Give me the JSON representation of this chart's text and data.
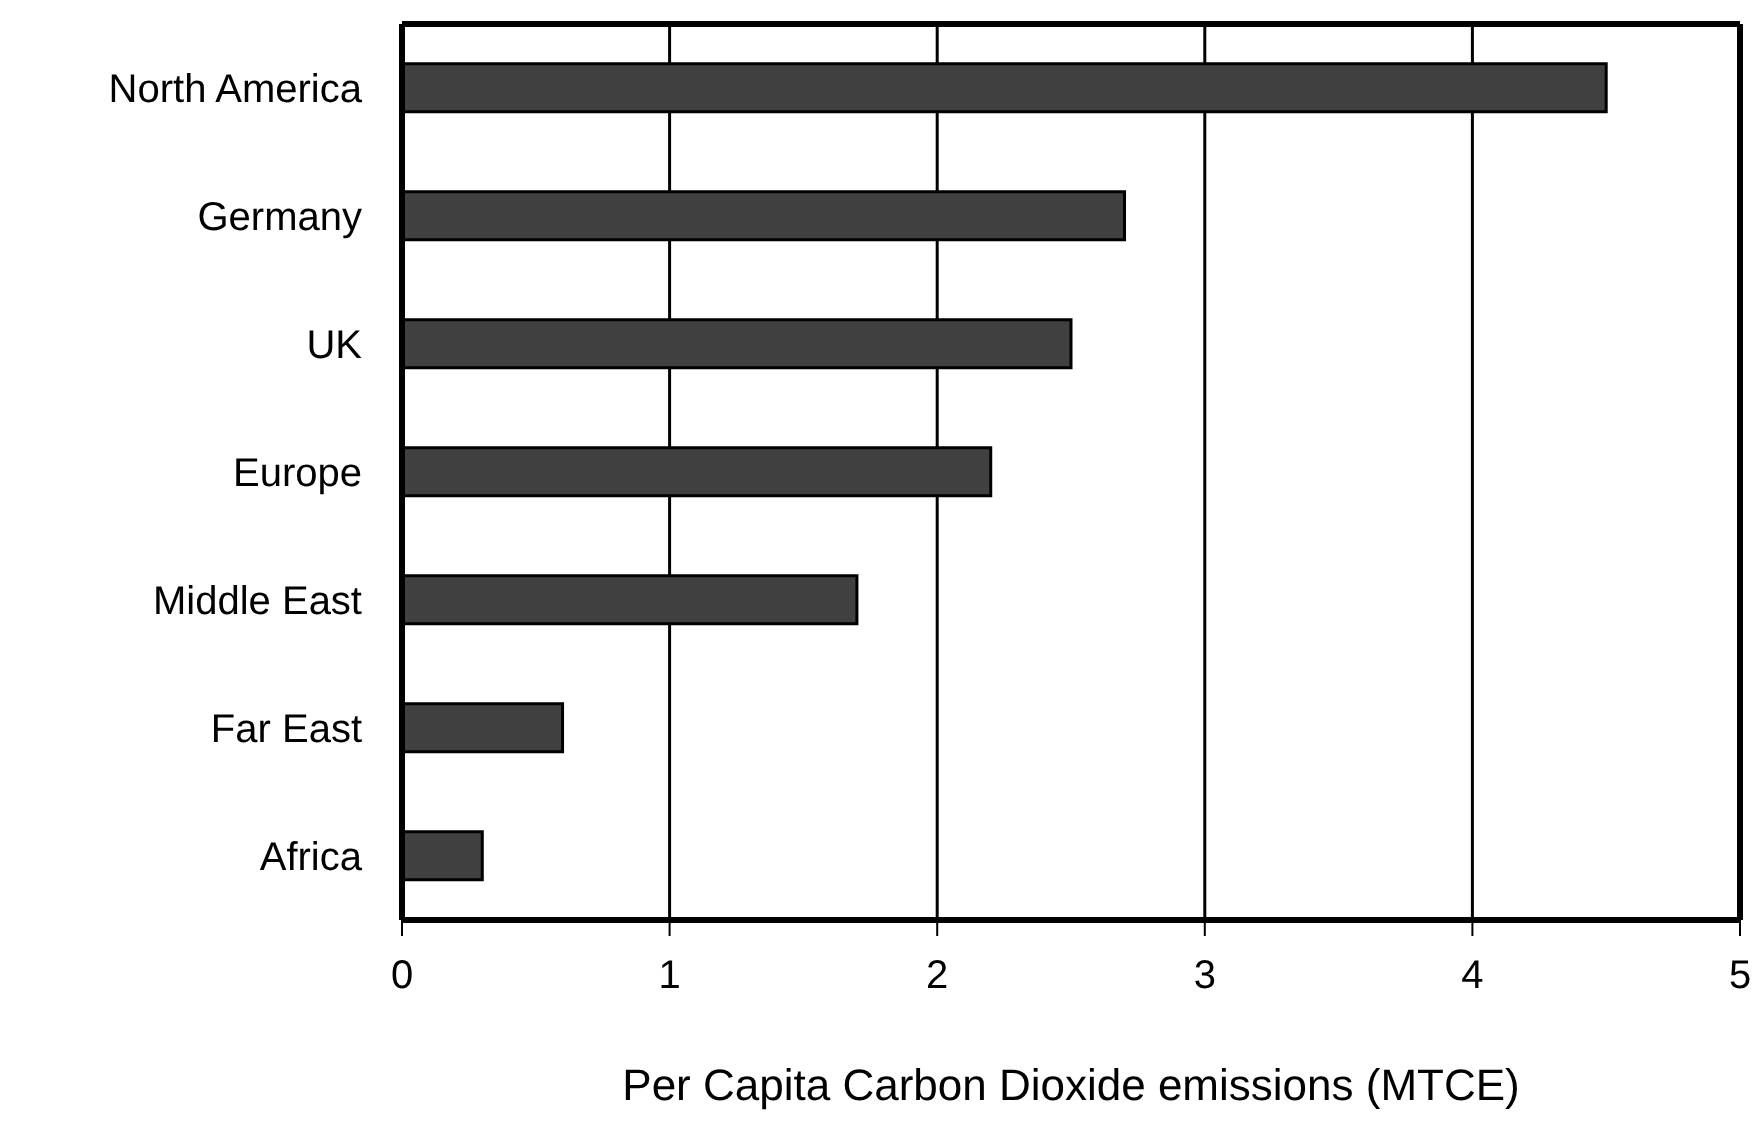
{
  "chart_data": {
    "type": "bar",
    "orientation": "horizontal",
    "xlabel": "Per Capita Carbon Dioxide emissions (MTCE)",
    "categories": [
      "North America",
      "Germany",
      "UK",
      "Europe",
      "Middle East",
      "Far East",
      "Africa"
    ],
    "values": [
      4.5,
      2.7,
      2.5,
      2.2,
      1.7,
      0.6,
      0.3
    ],
    "color": "#404040",
    "xlim": [
      0,
      5
    ],
    "xticks": [
      0,
      1,
      2,
      3,
      4,
      5
    ],
    "grid": "x"
  }
}
